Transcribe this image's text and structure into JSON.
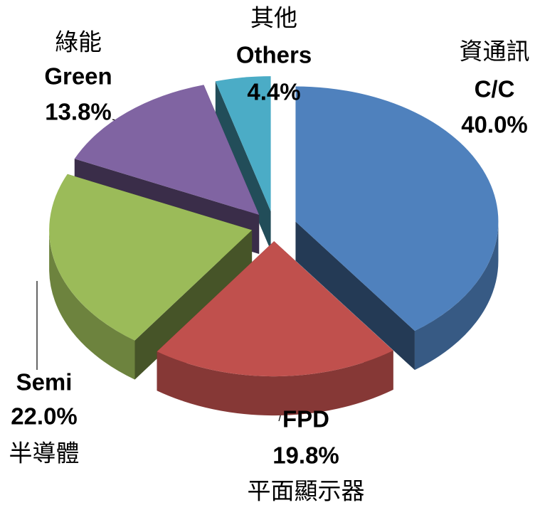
{
  "chart_data": {
    "type": "pie",
    "categories": [
      "C/C",
      "FPD",
      "Semi",
      "Green",
      "Others"
    ],
    "categories_zh": [
      "資通訊",
      "平面顯示器",
      "半導體",
      "綠能",
      "其他"
    ],
    "values": [
      40.0,
      19.8,
      22.0,
      13.8,
      4.4
    ],
    "value_labels": [
      "40.0%",
      "19.8%",
      "22.0%",
      "13.8%",
      "4.4%"
    ],
    "colors": [
      "#4f81bd",
      "#c0504d",
      "#9bbb59",
      "#8064a2",
      "#4bacc6"
    ]
  }
}
